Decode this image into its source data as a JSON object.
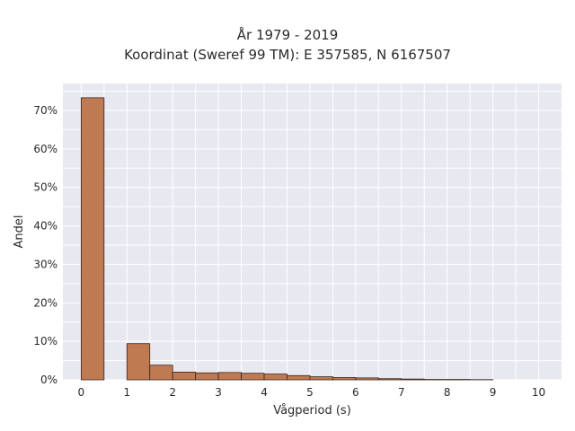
{
  "chart_data": {
    "type": "bar",
    "title_lines": [
      "År 1979 - 2019",
      "Koordinat (Sweref 99 TM): E 357585, N 6167507"
    ],
    "xlabel": "Vågperiod (s)",
    "ylabel": "Andel",
    "xlim": [
      -0.4,
      10.5
    ],
    "ylim": [
      0,
      0.77
    ],
    "x_ticks": [
      "0",
      "1",
      "2",
      "3",
      "4",
      "5",
      "6",
      "7",
      "8",
      "9",
      "10"
    ],
    "y_ticks": [
      "0%",
      "10%",
      "20%",
      "30%",
      "40%",
      "50%",
      "60%",
      "70%"
    ],
    "grid": true,
    "bin_width": 0.5,
    "bins": [
      {
        "x0": 0.0,
        "value": 0.733
      },
      {
        "x0": 1.0,
        "value": 0.094
      },
      {
        "x0": 1.5,
        "value": 0.038
      },
      {
        "x0": 2.0,
        "value": 0.02
      },
      {
        "x0": 2.5,
        "value": 0.018
      },
      {
        "x0": 3.0,
        "value": 0.019
      },
      {
        "x0": 3.5,
        "value": 0.017
      },
      {
        "x0": 4.0,
        "value": 0.015
      },
      {
        "x0": 4.5,
        "value": 0.011
      },
      {
        "x0": 5.0,
        "value": 0.008
      },
      {
        "x0": 5.5,
        "value": 0.006
      },
      {
        "x0": 6.0,
        "value": 0.005
      },
      {
        "x0": 6.5,
        "value": 0.003
      },
      {
        "x0": 7.0,
        "value": 0.002
      },
      {
        "x0": 7.5,
        "value": 0.001
      },
      {
        "x0": 8.0,
        "value": 0.001
      },
      {
        "x0": 8.5,
        "value": 0.0005
      }
    ],
    "colors": {
      "bar_fill": "#c07a52",
      "bar_stroke": "#3a2418",
      "plot_bg": "#e8e8f1",
      "grid": "#ffffff"
    }
  }
}
